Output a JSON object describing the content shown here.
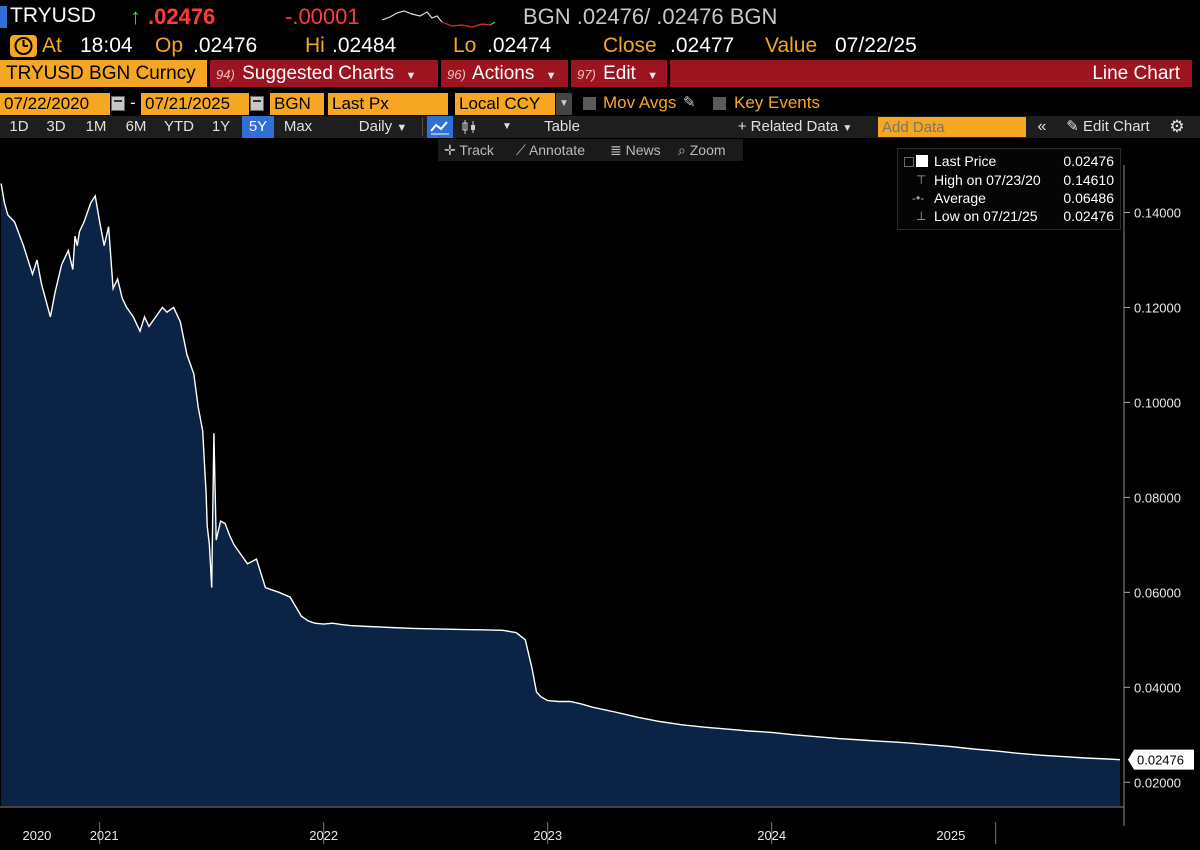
{
  "quote": {
    "ticker": "TRYUSD",
    "last": ".02476",
    "change": "-.00001",
    "source_quote": "BGN .02476/ .02476 BGN",
    "at_label": "At",
    "time": "18:04",
    "op_label": "Op",
    "op": ".02476",
    "hi_label": "Hi",
    "hi": ".02484",
    "lo_label": "Lo",
    "lo": ".02474",
    "close_label": "Close",
    "close": ".02477",
    "value_label": "Value",
    "value_date": "07/22/25"
  },
  "toolbar": {
    "security": "TRYUSD BGN Curncy",
    "suggested_num": "94)",
    "suggested": "Suggested Charts",
    "actions_num": "96)",
    "actions": "Actions",
    "edit_num": "97)",
    "edit": "Edit",
    "chart_type": "Line Chart"
  },
  "inputs": {
    "start_date": "07/22/2020",
    "end_date": "07/21/2025",
    "dash": "-",
    "source": "BGN",
    "field": "Last Px",
    "currency": "Local CCY",
    "mov_avgs": "Mov Avgs",
    "key_events": "Key Events"
  },
  "ranges": {
    "items": [
      "1D",
      "3D",
      "1M",
      "6M",
      "YTD",
      "1Y",
      "5Y",
      "Max"
    ],
    "active": "5Y",
    "period": "Daily",
    "table": "Table",
    "related": "+ Related Data",
    "add_data_placeholder": "Add Data",
    "edit_chart": "Edit Chart"
  },
  "tools": {
    "track": "Track",
    "annotate": "Annotate",
    "news": "News",
    "zoom": "Zoom"
  },
  "legend": {
    "last_label": "Last Price",
    "last_value": "0.02476",
    "high_label": "High on 07/23/20",
    "high_value": "0.14610",
    "avg_label": "Average",
    "avg_value": "0.06486",
    "low_label": "Low on 07/21/25",
    "low_value": "0.02476"
  },
  "colors": {
    "accent": "#f5a623",
    "toolbar_red": "#9b1420",
    "area_fill": "#0b2345",
    "line": "#ffffff"
  },
  "chart_data": {
    "type": "area",
    "ylim": [
      0.015,
      0.15
    ],
    "y_ticks": [
      "0.14000",
      "0.12000",
      "0.10000",
      "0.08000",
      "0.06000",
      "0.04000",
      "0.02000"
    ],
    "y_tick_values": [
      0.14,
      0.12,
      0.1,
      0.08,
      0.06,
      0.04,
      0.02
    ],
    "x_labels": [
      "2020",
      "2021",
      "2022",
      "2023",
      "2024",
      "2025"
    ],
    "x_label_times": [
      2020.72,
      2021.02,
      2022.0,
      2023.0,
      2024.0,
      2024.8
    ],
    "x_year_bounds": [
      2021.0,
      2022.0,
      2023.0,
      2024.0,
      2025.0
    ],
    "xlim": [
      2020.555,
      2025.555
    ],
    "last_label": "0.02476",
    "series": [
      {
        "x": [
          2020.56,
          2020.575,
          2020.59,
          2020.62,
          2020.66,
          2020.7,
          2020.72,
          2020.74,
          2020.78,
          2020.8,
          2020.83,
          2020.86,
          2020.88,
          2020.89,
          2020.9,
          2020.91,
          2020.93,
          2020.96,
          2020.98,
          2021.0,
          2021.02,
          2021.04,
          2021.06,
          2021.08,
          2021.1,
          2021.12,
          2021.15,
          2021.18,
          2021.2,
          2021.22,
          2021.25,
          2021.28,
          2021.3,
          2021.33,
          2021.36,
          2021.39,
          2021.42,
          2021.44,
          2021.46,
          2021.47,
          2021.475,
          2021.48,
          2021.49,
          2021.5,
          2021.51,
          2021.52,
          2021.54,
          2021.56,
          2021.58,
          2021.6,
          2021.63,
          2021.66,
          2021.7,
          2021.74,
          2021.8,
          2021.85,
          2021.9,
          2021.93,
          2021.96,
          2022.0,
          2022.04,
          2022.08,
          2022.12,
          2022.2,
          2022.3,
          2022.4,
          2022.5,
          2022.6,
          2022.7,
          2022.8,
          2022.86,
          2022.9,
          2022.93,
          2022.95,
          2022.97,
          2023.0,
          2023.05,
          2023.1,
          2023.15,
          2023.2,
          2023.3,
          2023.4,
          2023.5,
          2023.6,
          2023.7,
          2023.8,
          2023.9,
          2024.0,
          2024.1,
          2024.2,
          2024.3,
          2024.4,
          2024.5,
          2024.6,
          2024.7,
          2024.8,
          2024.9,
          2025.0,
          2025.1,
          2025.2,
          2025.3,
          2025.4,
          2025.5,
          2025.555
        ],
        "y": [
          0.1461,
          0.142,
          0.1395,
          0.138,
          0.133,
          0.127,
          0.13,
          0.125,
          0.118,
          0.123,
          0.129,
          0.132,
          0.128,
          0.135,
          0.133,
          0.136,
          0.138,
          0.142,
          0.1435,
          0.138,
          0.133,
          0.137,
          0.124,
          0.126,
          0.122,
          0.12,
          0.118,
          0.115,
          0.118,
          0.116,
          0.118,
          0.12,
          0.119,
          0.12,
          0.117,
          0.11,
          0.106,
          0.099,
          0.094,
          0.085,
          0.081,
          0.074,
          0.07,
          0.061,
          0.0935,
          0.071,
          0.075,
          0.0745,
          0.072,
          0.07,
          0.068,
          0.066,
          0.067,
          0.061,
          0.06,
          0.059,
          0.055,
          0.054,
          0.0535,
          0.0533,
          0.0535,
          0.0532,
          0.053,
          0.0528,
          0.0526,
          0.0524,
          0.0523,
          0.0522,
          0.0521,
          0.052,
          0.0515,
          0.05,
          0.044,
          0.039,
          0.038,
          0.0372,
          0.037,
          0.037,
          0.0365,
          0.0358,
          0.0348,
          0.0337,
          0.0328,
          0.0321,
          0.0316,
          0.0312,
          0.0308,
          0.0305,
          0.03,
          0.0296,
          0.0292,
          0.0289,
          0.0286,
          0.0283,
          0.0279,
          0.0275,
          0.027,
          0.0266,
          0.0261,
          0.0257,
          0.0254,
          0.0251,
          0.0249,
          0.02476
        ]
      }
    ]
  }
}
